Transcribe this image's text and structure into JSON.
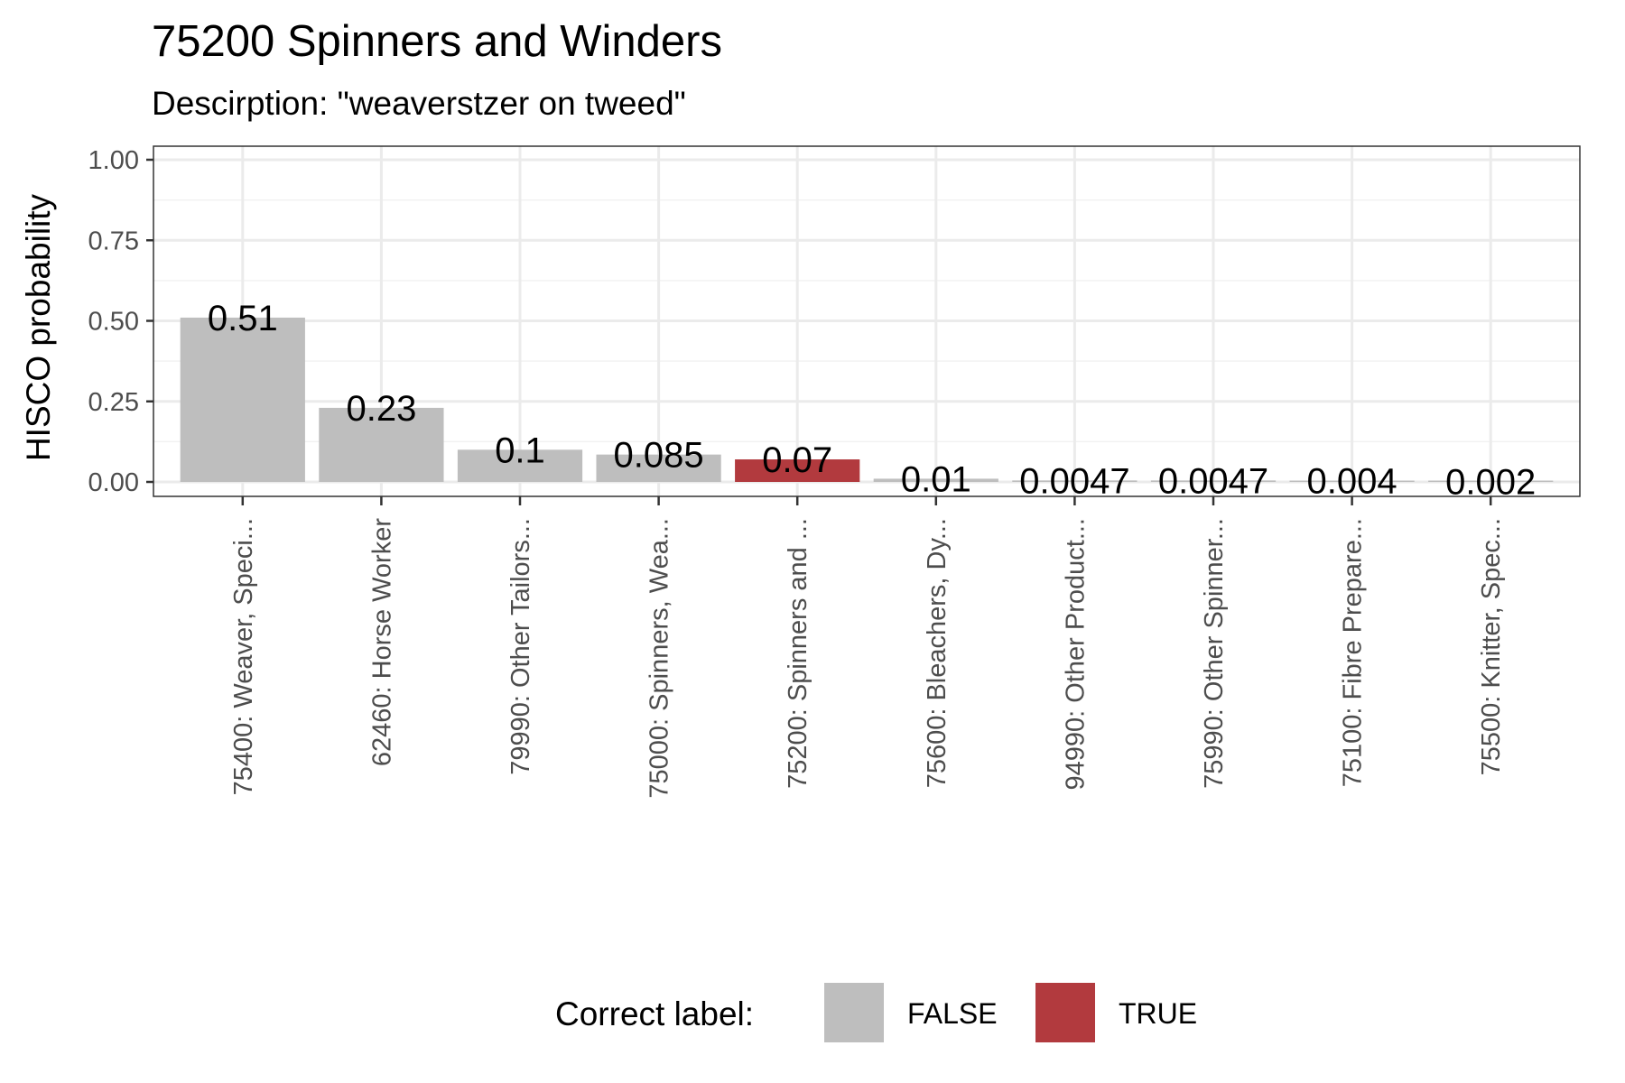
{
  "chart_data": {
    "type": "bar",
    "title": "75200 Spinners and Winders",
    "subtitle": "Descirption: \"weaverstzer on tweed\"",
    "xlabel": "",
    "ylabel": "HISCO probability",
    "ylim": [
      0,
      1
    ],
    "yticks": [
      "0.00",
      "0.25",
      "0.50",
      "0.75",
      "1.00"
    ],
    "grid": true,
    "categories": [
      "75400: Weaver, Speci...",
      "62460: Horse Worker",
      "79990: Other Tailors...",
      "75000: Spinners, Wea...",
      "75200: Spinners and ...",
      "75600: Bleachers, Dy...",
      "94990: Other Product...",
      "75990: Other Spinner...",
      "75100: Fibre Prepare...",
      "75500: Knitter, Spec..."
    ],
    "values": [
      0.51,
      0.23,
      0.1,
      0.085,
      0.07,
      0.01,
      0.0047,
      0.0047,
      0.004,
      0.002
    ],
    "value_labels": [
      "0.51",
      "0.23",
      "0.1",
      "0.085",
      "0.07",
      "0.01",
      "0.0047",
      "0.0047",
      "0.004",
      "0.002"
    ],
    "correct": [
      false,
      false,
      false,
      false,
      true,
      false,
      false,
      false,
      false,
      false
    ],
    "legend": {
      "title": "Correct label:",
      "placement": "bottom",
      "entries": [
        {
          "label": "FALSE",
          "color": "#bebebe"
        },
        {
          "label": "TRUE",
          "color": "#b23a3e"
        }
      ]
    }
  }
}
